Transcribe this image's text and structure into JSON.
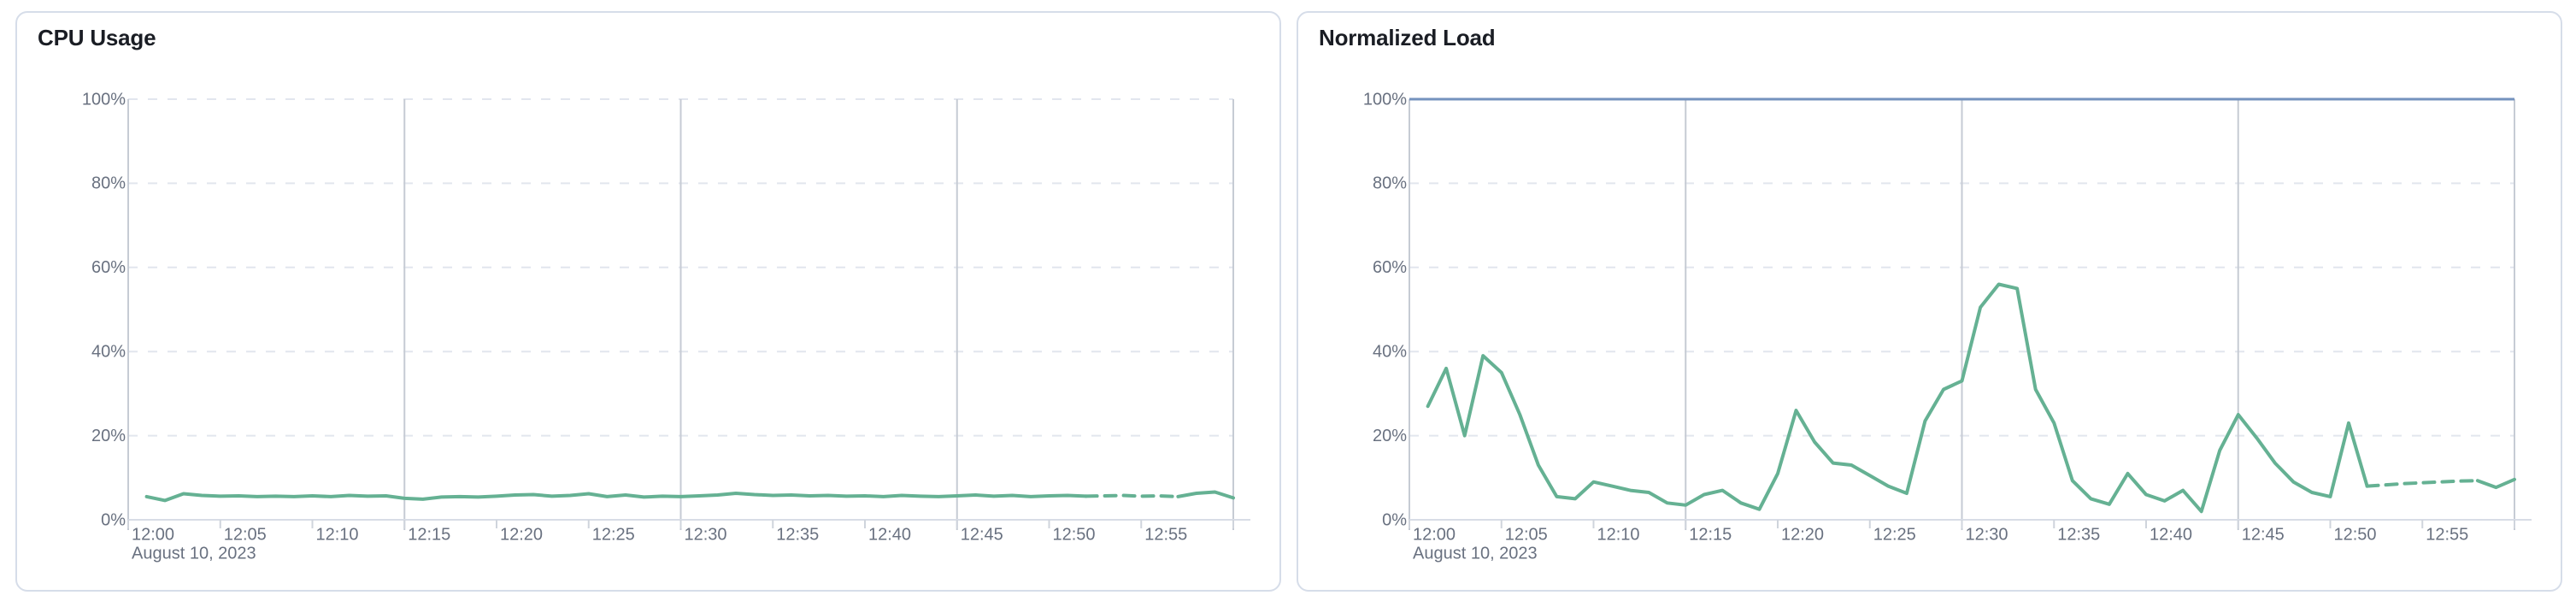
{
  "page": {
    "background": "#ffffff"
  },
  "style": {
    "card_border": "#d6dde9",
    "title_color": "#1a1d24",
    "label_color": "#697180",
    "grid_dash_color": "#e2e6ee",
    "grid_vertical_color": "#c6cbd4",
    "axis_line_color": "#d8dde6",
    "tick_color": "#cfd4dc"
  },
  "chart_data": [
    {
      "type": "line",
      "title": "CPU Usage",
      "x_axis": {
        "date_label": "August 10, 2023",
        "tick_labels": [
          "12:00",
          "12:05",
          "12:10",
          "12:15",
          "12:20",
          "12:25",
          "12:30",
          "12:35",
          "12:40",
          "12:45",
          "12:50",
          "12:55"
        ],
        "range_start": "12:00",
        "range_end": "13:00",
        "major_gridline_minutes": [
          0,
          15,
          30,
          45,
          60
        ]
      },
      "y_axis": {
        "unit": "%",
        "min": 0,
        "max": 100,
        "tick_labels": [
          "0%",
          "20%",
          "40%",
          "60%",
          "80%",
          "100%"
        ],
        "grid": "dashed"
      },
      "series": [
        {
          "name": "cpu-usage",
          "color": "#65b193",
          "dashed_segment": {
            "from": "12:52",
            "to": "12:57"
          },
          "x": [
            "12:01",
            "12:02",
            "12:03",
            "12:04",
            "12:05",
            "12:06",
            "12:07",
            "12:08",
            "12:09",
            "12:10",
            "12:11",
            "12:12",
            "12:13",
            "12:14",
            "12:15",
            "12:16",
            "12:17",
            "12:18",
            "12:19",
            "12:20",
            "12:21",
            "12:22",
            "12:23",
            "12:24",
            "12:25",
            "12:26",
            "12:27",
            "12:28",
            "12:29",
            "12:30",
            "12:31",
            "12:32",
            "12:33",
            "12:34",
            "12:35",
            "12:36",
            "12:37",
            "12:38",
            "12:39",
            "12:40",
            "12:41",
            "12:42",
            "12:43",
            "12:44",
            "12:45",
            "12:46",
            "12:47",
            "12:48",
            "12:49",
            "12:50",
            "12:51",
            "12:52",
            "12:53",
            "12:54",
            "12:55",
            "12:56",
            "12:57",
            "12:58",
            "12:59",
            "13:00"
          ],
          "values": [
            5.5,
            4.6,
            6.2,
            5.8,
            5.6,
            5.7,
            5.5,
            5.6,
            5.5,
            5.7,
            5.5,
            5.8,
            5.6,
            5.7,
            5.1,
            4.9,
            5.4,
            5.5,
            5.4,
            5.6,
            5.9,
            6.0,
            5.6,
            5.8,
            6.2,
            5.5,
            5.9,
            5.4,
            5.6,
            5.5,
            5.7,
            5.9,
            6.3,
            6.0,
            5.8,
            5.9,
            5.7,
            5.8,
            5.6,
            5.7,
            5.5,
            5.8,
            5.6,
            5.5,
            5.7,
            5.9,
            5.6,
            5.8,
            5.5,
            5.7,
            5.8,
            5.6,
            5.7,
            5.8,
            5.6,
            5.7,
            5.5,
            6.3,
            6.6,
            5.2
          ]
        }
      ]
    },
    {
      "type": "line",
      "title": "Normalized Load",
      "x_axis": {
        "date_label": "August 10, 2023",
        "tick_labels": [
          "12:00",
          "12:05",
          "12:10",
          "12:15",
          "12:20",
          "12:25",
          "12:30",
          "12:35",
          "12:40",
          "12:45",
          "12:50",
          "12:55"
        ],
        "range_start": "12:00",
        "range_end": "13:00",
        "major_gridline_minutes": [
          0,
          15,
          30,
          45,
          60
        ]
      },
      "y_axis": {
        "unit": "%",
        "min": 0,
        "max": 100,
        "tick_labels": [
          "0%",
          "20%",
          "40%",
          "60%",
          "80%",
          "100%"
        ],
        "grid": "dashed"
      },
      "reference_line": {
        "name": "limit-100-percent",
        "value": 100,
        "color": "#7492be"
      },
      "series": [
        {
          "name": "normalized-load",
          "color": "#65b193",
          "dashed_segment": {
            "from": "12:52",
            "to": "12:58"
          },
          "x": [
            "12:01",
            "12:02",
            "12:03",
            "12:04",
            "12:05",
            "12:06",
            "12:07",
            "12:08",
            "12:09",
            "12:10",
            "12:11",
            "12:12",
            "12:13",
            "12:14",
            "12:15",
            "12:16",
            "12:17",
            "12:18",
            "12:19",
            "12:20",
            "12:21",
            "12:22",
            "12:23",
            "12:24",
            "12:25",
            "12:26",
            "12:27",
            "12:28",
            "12:29",
            "12:30",
            "12:31",
            "12:32",
            "12:33",
            "12:34",
            "12:35",
            "12:36",
            "12:37",
            "12:38",
            "12:39",
            "12:40",
            "12:41",
            "12:42",
            "12:43",
            "12:44",
            "12:45",
            "12:46",
            "12:47",
            "12:48",
            "12:49",
            "12:50",
            "12:51",
            "12:52",
            "12:53",
            "12:54",
            "12:55",
            "12:56",
            "12:57",
            "12:58",
            "12:59",
            "13:00"
          ],
          "values": [
            27,
            36,
            20,
            39,
            35,
            25,
            13,
            5.5,
            5,
            9,
            8,
            7,
            6.5,
            4,
            3.5,
            6,
            7,
            4,
            2.5,
            11,
            26,
            18.5,
            13.5,
            13,
            10.5,
            8,
            6.3,
            23.5,
            31,
            33,
            50.5,
            56,
            55,
            31,
            23,
            9.3,
            5,
            3.7,
            11,
            6,
            4.5,
            7,
            2,
            16.5,
            25,
            19.5,
            13.5,
            9,
            6.5,
            5.5,
            23,
            8,
            8.3,
            8.6,
            8.8,
            9,
            9.2,
            9.3,
            7.7,
            9.6
          ]
        }
      ]
    }
  ]
}
